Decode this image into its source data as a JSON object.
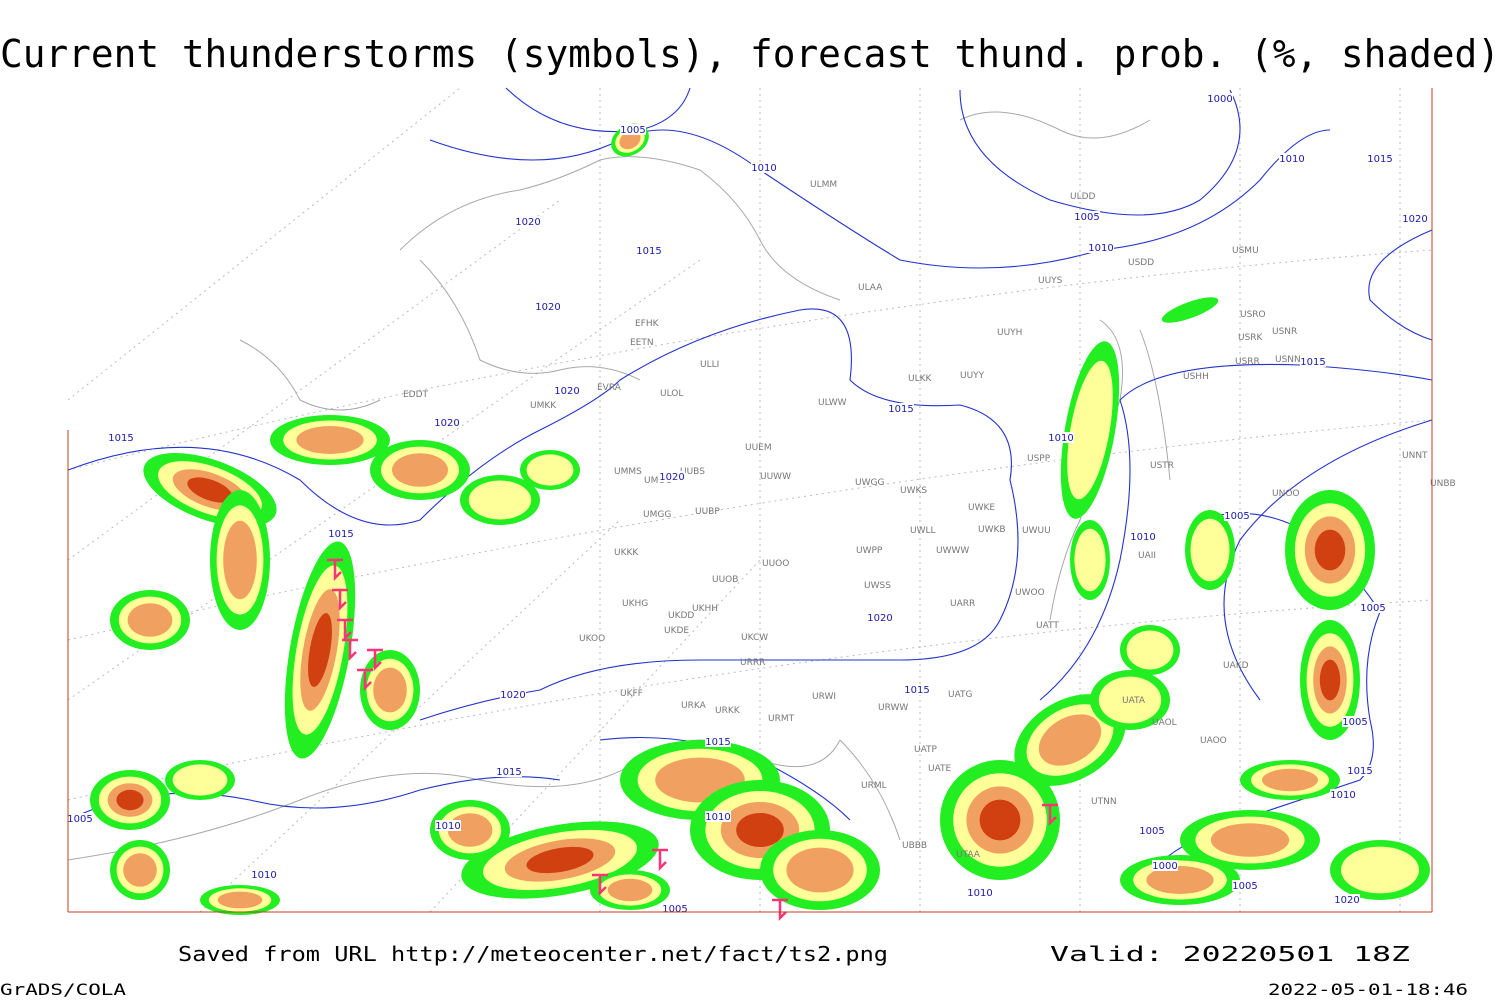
{
  "header": {
    "title": "Current thunderstorms (symbols), forecast thund. prob. (%, shaded)"
  },
  "map": {
    "stations": [
      "ULMM",
      "ULAA",
      "EFHK",
      "EETN",
      "ULLI",
      "ULOL",
      "EVRA",
      "EDDT",
      "UMKK",
      "ULWW",
      "ULKK",
      "UUYY",
      "UUYH",
      "UUYS",
      "ULDD",
      "USDD",
      "USMU",
      "USRO",
      "USNR",
      "USRK",
      "USRR",
      "USNN",
      "USHH",
      "USPP",
      "USTR",
      "UUEM",
      "UMMS",
      "UMOO",
      "UUBS",
      "UUWW",
      "UWGG",
      "UWKS",
      "UWKE",
      "UWKB",
      "UWUU",
      "UWLL",
      "UWWW",
      "UWPP",
      "UUOO",
      "UMGG",
      "UUBP",
      "UKKK",
      "UUOB",
      "UWSS",
      "UARR",
      "UWOO",
      "UATT",
      "UKHH",
      "UKHG",
      "UKDD",
      "UKOO",
      "UKDE",
      "UKCW",
      "URRR",
      "UKFF",
      "URKA",
      "URKK",
      "URWI",
      "URMT",
      "URWW",
      "UATG",
      "UATP",
      "UATE",
      "URML",
      "UBBB",
      "UTAA",
      "UTNN",
      "UAOO",
      "UAOL",
      "UATA",
      "UAKD",
      "UAII",
      "UNBB",
      "UNNT",
      "UNOO"
    ],
    "isobar_labels": [
      1005,
      1010,
      1020,
      1015,
      1020,
      1020,
      1020,
      1015,
      1015,
      1020,
      1015,
      1010,
      1015,
      1000,
      1005,
      1010,
      1020,
      1010,
      1015,
      1020,
      1020,
      1015,
      1015,
      1015,
      1010,
      1010,
      1005,
      1010,
      1010,
      1005,
      1000,
      1005,
      1005,
      1010,
      1005,
      1005,
      1015,
      1010,
      1005,
      1020
    ]
  },
  "footer": {
    "source": "Saved from URL http://meteocenter.net/fact/ts2.png",
    "valid": "Valid: 20220501 18Z",
    "software": "GrADS/COLA",
    "timestamp": "2022-05-01-18:46"
  }
}
